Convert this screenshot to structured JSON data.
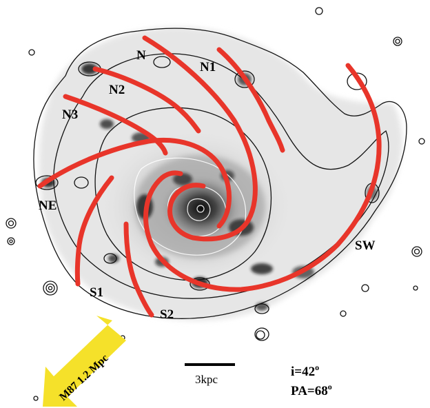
{
  "figure": {
    "arm_labels": {
      "n": "N",
      "n1": "N1",
      "n2": "N2",
      "n3": "N3",
      "ne": "NE",
      "s1": "S1",
      "s2": "S2",
      "sw": "SW"
    },
    "scale_bar_label": "3kpc",
    "direction_arrow_label": "M87  1.2 Mpc",
    "inclination": {
      "prefix": "i=42",
      "superscript": "o"
    },
    "position_angle": {
      "prefix": "PA=68",
      "superscript": "o"
    },
    "colors": {
      "arms": "#e8352a",
      "arrow": "#f5e12a",
      "contours": "#111111"
    }
  }
}
